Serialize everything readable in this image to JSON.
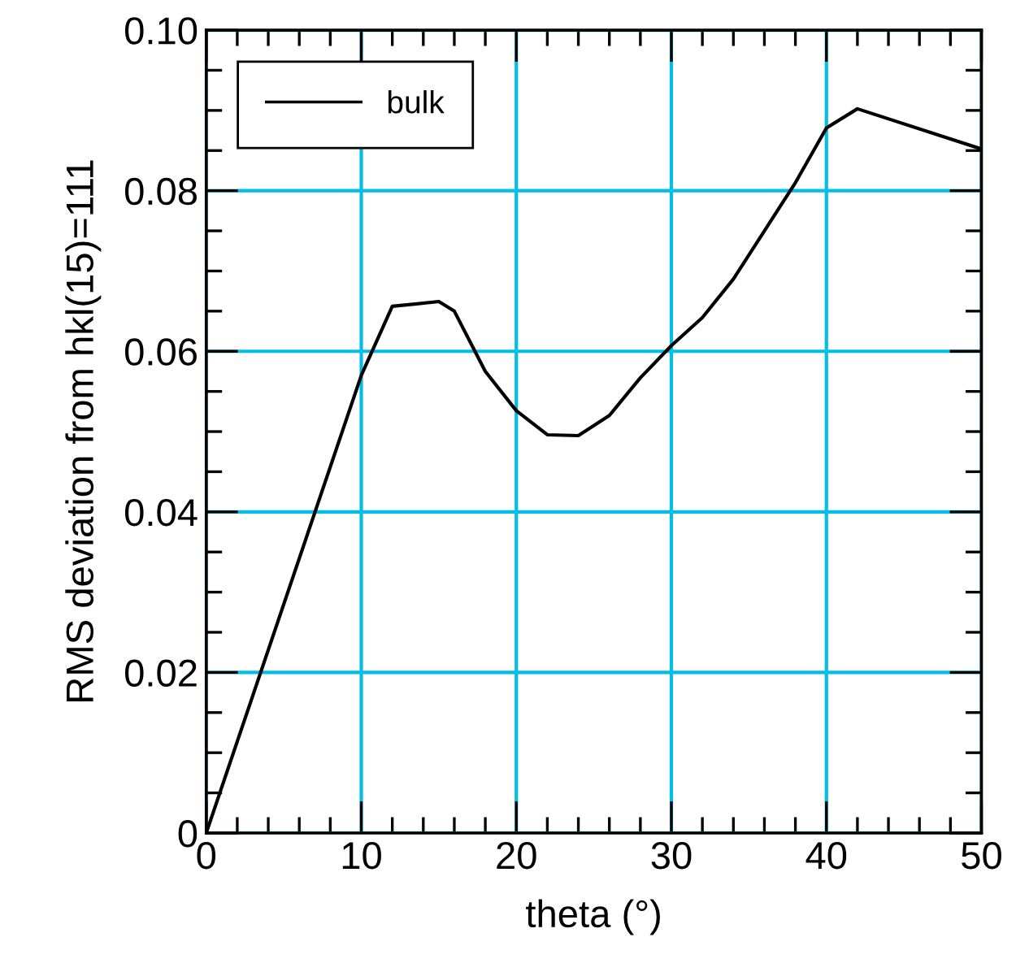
{
  "chart_data": {
    "type": "line",
    "xlabel": "theta (°)",
    "ylabel": "RMS deviation from hkl(15)=111",
    "xlim": [
      0,
      50
    ],
    "ylim": [
      0,
      0.1
    ],
    "xticks": [
      0,
      10,
      20,
      30,
      40,
      50
    ],
    "yticks": [
      0,
      0.02,
      0.04,
      0.06,
      0.08,
      {
        "value": 0.1,
        "label": "0.10"
      }
    ],
    "grid": true,
    "legend": "top left",
    "marker": "none",
    "line_style": "solid",
    "series": [
      {
        "name": "bulk",
        "color": "#000000",
        "x": [
          0,
          10,
          12,
          15,
          16,
          18,
          20,
          22,
          24,
          26,
          28,
          30,
          32,
          34,
          36,
          38,
          40,
          42,
          50
        ],
        "values": [
          0,
          0.057,
          0.0656,
          0.0662,
          0.065,
          0.0575,
          0.0526,
          0.0496,
          0.0495,
          0.052,
          0.0567,
          0.0607,
          0.0642,
          0.069,
          0.075,
          0.081,
          0.0878,
          0.0902,
          0.0852
        ]
      }
    ]
  }
}
